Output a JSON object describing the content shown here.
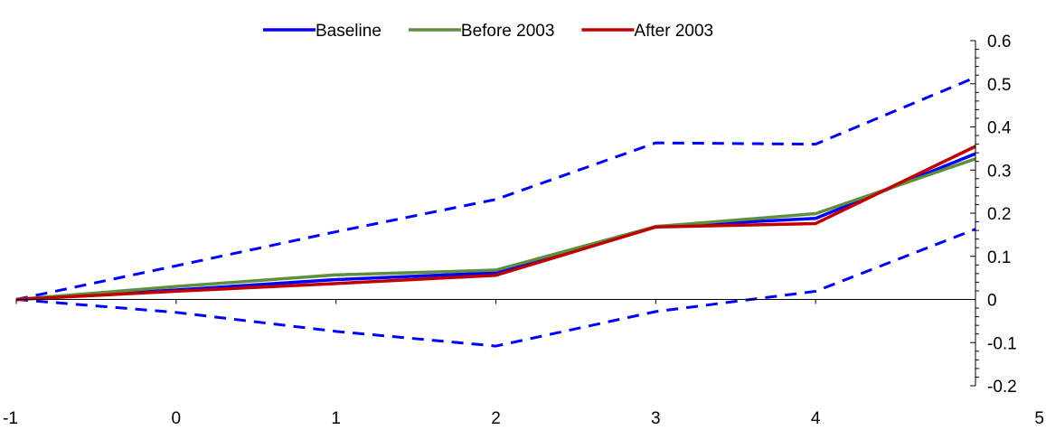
{
  "chart_data": {
    "type": "line",
    "title": "",
    "xlabel": "",
    "ylabel": "",
    "x": [
      -1,
      0,
      1,
      2,
      3,
      4,
      5
    ],
    "xlim": [
      -1,
      5
    ],
    "ylim": [
      -0.2,
      0.6
    ],
    "x_ticks": [
      "-1",
      "0",
      "1",
      "2",
      "3",
      "4",
      "5"
    ],
    "y_ticks": [
      "-0.2",
      "-0.1",
      "0",
      "0.1",
      "0.2",
      "0.3",
      "0.4",
      "0.5",
      "0.6"
    ],
    "y_axis_side": "right",
    "x_axis_at_y": 0,
    "grid": false,
    "legend_position": "top-center",
    "series": [
      {
        "name": "Baseline",
        "color": "#0000ff",
        "style": "solid",
        "in_legend": true,
        "values": [
          0.0,
          0.022,
          0.046,
          0.062,
          0.169,
          0.188,
          0.338
        ]
      },
      {
        "name": "Before 2003",
        "color": "#5f8f3e",
        "style": "solid",
        "in_legend": true,
        "values": [
          0.0,
          0.03,
          0.057,
          0.068,
          0.169,
          0.199,
          0.326
        ]
      },
      {
        "name": "After 2003",
        "color": "#c00000",
        "style": "solid",
        "in_legend": true,
        "values": [
          0.0,
          0.019,
          0.037,
          0.056,
          0.168,
          0.176,
          0.355
        ]
      },
      {
        "name": "",
        "color": "#0000ff",
        "style": "dashed",
        "in_legend": false,
        "values": [
          0.0,
          0.078,
          0.157,
          0.232,
          0.363,
          0.36,
          0.515
        ]
      },
      {
        "name": "",
        "color": "#0000ff",
        "style": "dashed",
        "in_legend": false,
        "values": [
          0.0,
          -0.03,
          -0.074,
          -0.108,
          -0.028,
          0.019,
          0.163
        ]
      }
    ]
  }
}
